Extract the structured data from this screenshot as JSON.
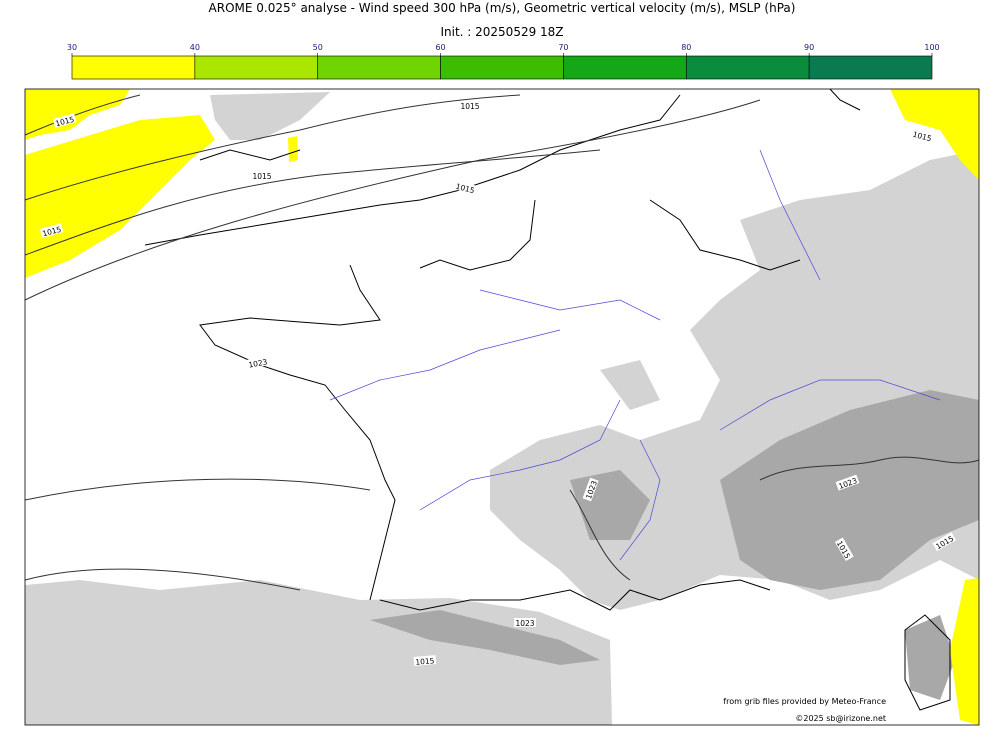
{
  "title": "AROME 0.025° analyse - Wind speed 300 hPa (m/s), Geometric vertical velocity (m/s), MSLP (hPa)",
  "subtitle": "Init. : 20250529 18Z",
  "colorbar": {
    "range": [
      30,
      100
    ],
    "ticks": [
      30,
      40,
      50,
      60,
      70,
      80,
      90,
      100
    ],
    "colors": [
      "#ffff00",
      "#aae600",
      "#6fd400",
      "#3cbd00",
      "#14a818",
      "#0a8c3c",
      "#0a7a50"
    ]
  },
  "isobar_labels": [
    1015,
    1015,
    1015,
    1015,
    1015,
    1015,
    1023,
    1023,
    1023,
    1015,
    1015,
    1023,
    1015
  ],
  "credits": [
    "from grib files provided by Meteo-France",
    "©2025 sb@irizone.net"
  ]
}
